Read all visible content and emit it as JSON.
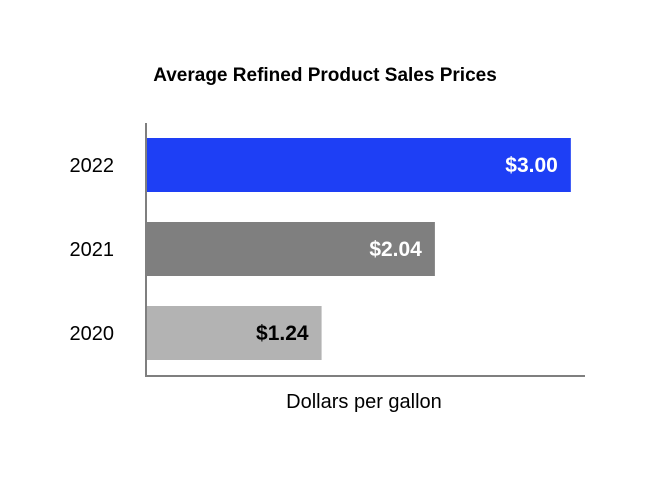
{
  "chart_data": {
    "type": "bar",
    "orientation": "horizontal",
    "title": "Average Refined Product Sales Prices",
    "xlabel": "Dollars per gallon",
    "ylabel": "",
    "categories": [
      "2022",
      "2021",
      "2020"
    ],
    "values": [
      3.0,
      2.04,
      1.24
    ],
    "data_labels": [
      "$3.00",
      "$2.04",
      "$1.24"
    ],
    "xlim": [
      0,
      3.1
    ],
    "grid": false,
    "legend": "none",
    "colors": [
      "#1e3ff5",
      "#7f7f7f",
      "#b3b3b3"
    ],
    "label_colors": [
      "#ffffff",
      "#ffffff",
      "#000000"
    ]
  }
}
